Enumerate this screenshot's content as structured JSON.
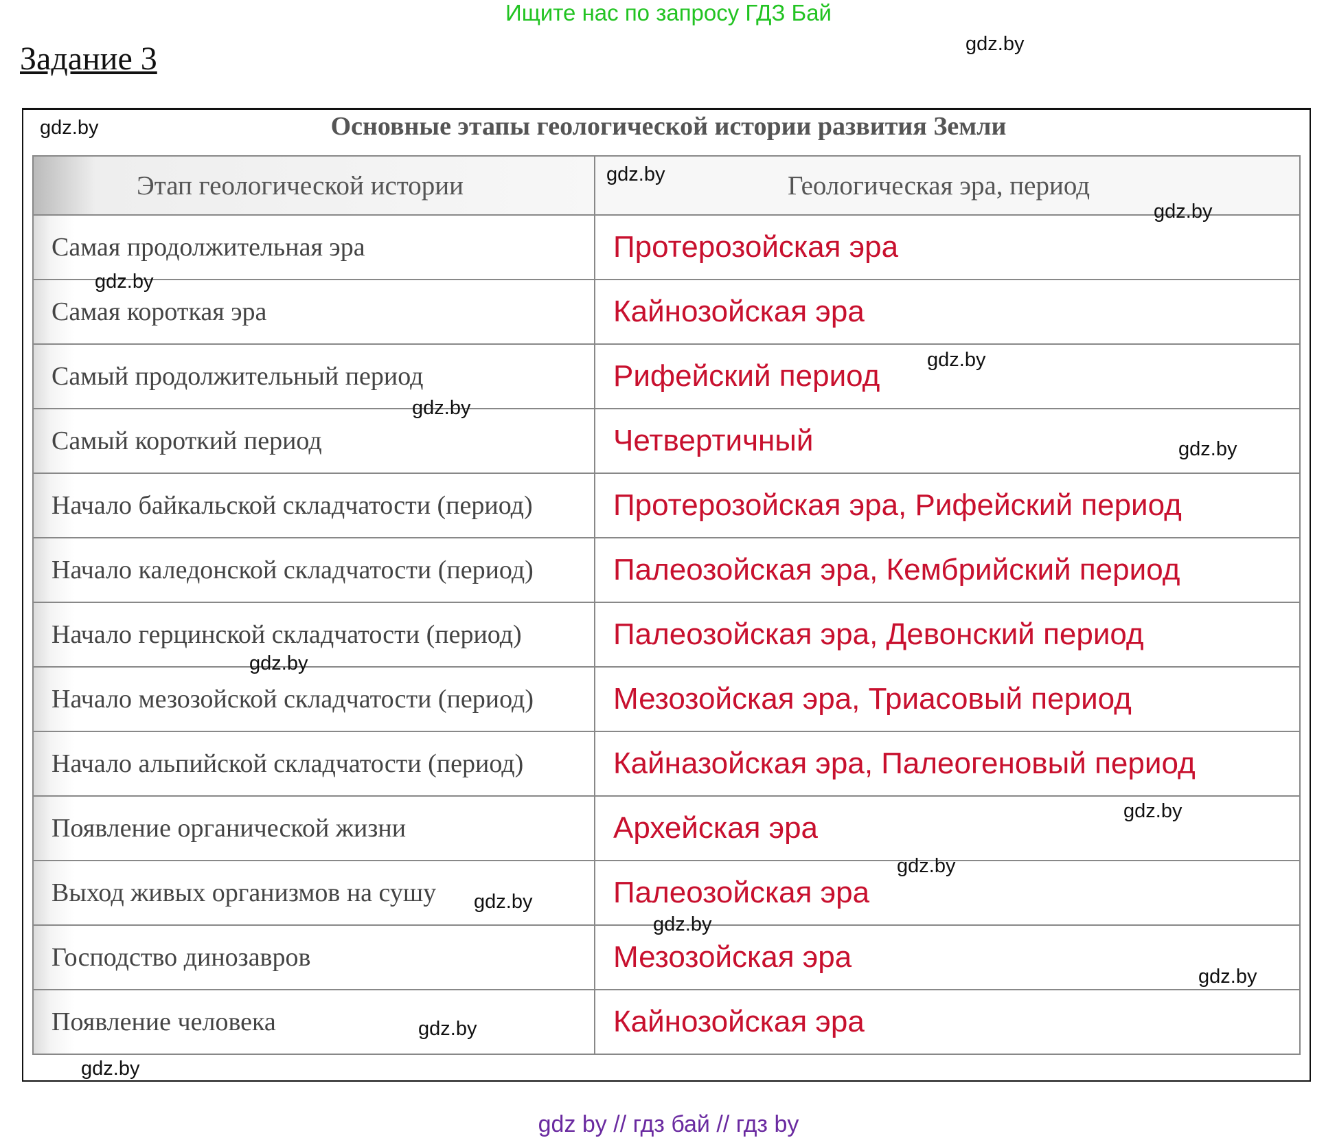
{
  "header": {
    "ad_text": "Ищите нас по запросу ГДЗ Бай",
    "task_title": "Задание 3"
  },
  "table": {
    "title": "Основные этапы геологической истории развития Земли",
    "columns": [
      "Этап геологической истории",
      "Геологическая эра, период"
    ],
    "rows": [
      [
        "Самая продолжительная эра",
        "Протерозойская эра"
      ],
      [
        "Самая короткая эра",
        "Кайнозойская эра"
      ],
      [
        "Самый продолжительный период",
        "Рифейский период"
      ],
      [
        "Самый короткий период",
        "Четвертичный"
      ],
      [
        "Начало байкальской складчатости (период)",
        "Протерозойская эра, Рифейский период"
      ],
      [
        "Начало каледонской складчатости (период)",
        "Палеозойская эра, Кембрийский период"
      ],
      [
        "Начало герцинской складчатости (период)",
        "Палеозойская эра, Девонский период"
      ],
      [
        "Начало мезозойской складчатости (период)",
        "Мезозойская эра, Триасовый период"
      ],
      [
        "Начало альпийской складчатости (период)",
        "Кайназойская эра, Палеогеновый период"
      ],
      [
        "Появление органической жизни",
        "Архейская эра"
      ],
      [
        "Выход живых организмов на сушу",
        "Палеозойская эра"
      ],
      [
        "Господство динозавров",
        "Мезозойская эра"
      ],
      [
        "Появление человека",
        "Кайнозойская эра"
      ]
    ]
  },
  "watermark": "gdz.by",
  "footer": {
    "text": "gdz by  //  гдз бай  //  гдз by"
  },
  "colors": {
    "answer": "#c8102e",
    "ad": "#22c322",
    "footer": "#6a2aa0"
  }
}
